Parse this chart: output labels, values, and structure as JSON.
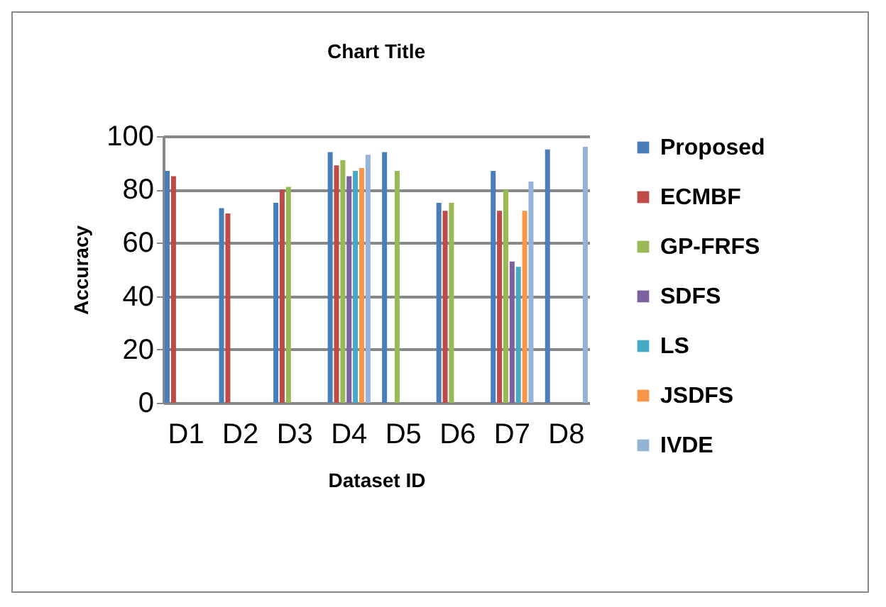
{
  "chart_data": {
    "type": "bar",
    "title": "Chart Title",
    "xlabel": "Dataset ID",
    "ylabel": "Accuracy",
    "categories": [
      "D1",
      "D2",
      "D3",
      "D4",
      "D5",
      "D6",
      "D7",
      "D8"
    ],
    "series": [
      {
        "name": "Proposed",
        "color": "#4a7ebb",
        "values": [
          87,
          73,
          75,
          94,
          94,
          75,
          87,
          95
        ]
      },
      {
        "name": "ECMBF",
        "color": "#be4b48",
        "values": [
          85,
          71,
          80,
          89,
          null,
          72,
          72,
          null
        ]
      },
      {
        "name": "GP-FRFS",
        "color": "#98b954",
        "values": [
          null,
          null,
          81,
          91,
          87,
          75,
          80,
          null
        ]
      },
      {
        "name": "SDFS",
        "color": "#7d60a0",
        "values": [
          null,
          null,
          null,
          85,
          null,
          null,
          53,
          null
        ]
      },
      {
        "name": "LS",
        "color": "#46aac5",
        "values": [
          null,
          null,
          null,
          87,
          null,
          null,
          51,
          null
        ]
      },
      {
        "name": "JSDFS",
        "color": "#f79646",
        "values": [
          null,
          null,
          null,
          88,
          null,
          null,
          72,
          null
        ]
      },
      {
        "name": "IVDE",
        "color": "#94b3d6",
        "values": [
          null,
          null,
          null,
          93,
          null,
          null,
          83,
          96
        ]
      }
    ],
    "ylim": [
      0,
      100
    ],
    "yticks": [
      0,
      20,
      40,
      60,
      80,
      100
    ],
    "grid": "y",
    "legend": "right"
  }
}
